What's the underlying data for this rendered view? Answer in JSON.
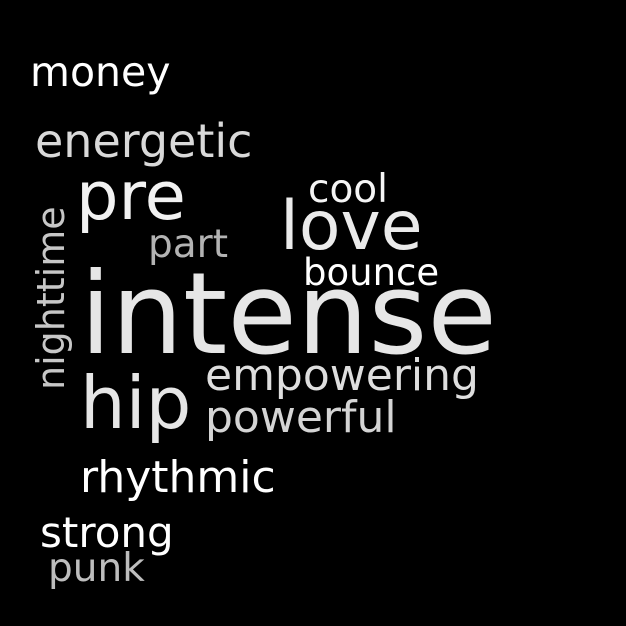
{
  "words": {
    "money": {
      "text": "money",
      "color": "#ffffff"
    },
    "energetic": {
      "text": "energetic",
      "color": "#d9d9d9"
    },
    "pre": {
      "text": "pre",
      "color": "#f2f2f2"
    },
    "cool": {
      "text": "cool",
      "color": "#f5f5f5"
    },
    "love": {
      "text": "love",
      "color": "#ebebeb"
    },
    "part": {
      "text": "part",
      "color": "#b3b3b3"
    },
    "bounce": {
      "text": "bounce",
      "color": "#ffffff"
    },
    "intense": {
      "text": "intense",
      "color": "#e6e6e6"
    },
    "empowering": {
      "text": "empowering",
      "color": "#dedede"
    },
    "hip": {
      "text": "hip",
      "color": "#e6e6e6"
    },
    "powerful": {
      "text": "powerful",
      "color": "#d4d4d4"
    },
    "rhythmic": {
      "text": "rhythmic",
      "color": "#ffffff"
    },
    "strong": {
      "text": "strong",
      "color": "#ffffff"
    },
    "punk": {
      "text": "punk",
      "color": "#bdbdbd"
    },
    "nighttime": {
      "text": "nighttime",
      "color": "#c7c7c7"
    }
  },
  "background_color": "#000000"
}
